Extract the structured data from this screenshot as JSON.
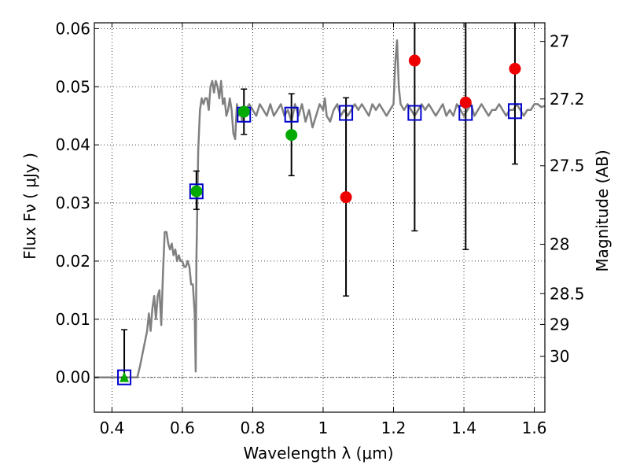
{
  "chart_data": {
    "type": "scatter",
    "xlabel": "Wavelength  λ (μm)",
    "ylabel": "Flux  Fν  ( μJy )",
    "ylabel_right": "Magnitude (AB)",
    "xlim": [
      0.35,
      1.63
    ],
    "ylim": [
      -0.006,
      0.061
    ],
    "grid": true,
    "x_ticks": [
      {
        "value": 0.4,
        "label": "0.4"
      },
      {
        "value": 0.6,
        "label": "0.6"
      },
      {
        "value": 0.8,
        "label": "0.8"
      },
      {
        "value": 1.0,
        "label": "1"
      },
      {
        "value": 1.2,
        "label": "1.2"
      },
      {
        "value": 1.4,
        "label": "1.4"
      },
      {
        "value": 1.6,
        "label": "1.6"
      }
    ],
    "y_ticks": [
      {
        "value": 0.0,
        "label": "0.00"
      },
      {
        "value": 0.01,
        "label": "0.01"
      },
      {
        "value": 0.02,
        "label": "0.02"
      },
      {
        "value": 0.03,
        "label": "0.03"
      },
      {
        "value": 0.04,
        "label": "0.04"
      },
      {
        "value": 0.05,
        "label": "0.05"
      },
      {
        "value": 0.06,
        "label": "0.06"
      }
    ],
    "y2_ticks": [
      {
        "label": "27",
        "flux": 0.0578
      },
      {
        "label": "27.2",
        "flux": 0.0479
      },
      {
        "label": "27.5",
        "flux": 0.0364
      },
      {
        "label": "28",
        "flux": 0.0229
      },
      {
        "label": "28.5",
        "flux": 0.0144
      },
      {
        "label": "29",
        "flux": 0.0091
      },
      {
        "label": "30",
        "flux": 0.0036
      }
    ],
    "zero_line": 0.0,
    "template_spectrum": {
      "color": "#808080",
      "x": [
        0.35,
        0.4,
        0.45,
        0.472,
        0.48,
        0.5,
        0.505,
        0.51,
        0.515,
        0.52,
        0.525,
        0.53,
        0.535,
        0.54,
        0.545,
        0.55,
        0.555,
        0.56,
        0.565,
        0.57,
        0.575,
        0.58,
        0.585,
        0.59,
        0.595,
        0.6,
        0.605,
        0.61,
        0.615,
        0.62,
        0.625,
        0.63,
        0.635,
        0.638,
        0.64,
        0.645,
        0.65,
        0.655,
        0.66,
        0.665,
        0.67,
        0.675,
        0.68,
        0.685,
        0.69,
        0.695,
        0.7,
        0.705,
        0.71,
        0.715,
        0.72,
        0.725,
        0.73,
        0.735,
        0.74,
        0.745,
        0.75,
        0.755,
        0.76,
        0.765,
        0.77,
        0.78,
        0.79,
        0.8,
        0.81,
        0.82,
        0.83,
        0.84,
        0.85,
        0.86,
        0.87,
        0.88,
        0.89,
        0.9,
        0.91,
        0.92,
        0.93,
        0.94,
        0.95,
        0.96,
        0.97,
        0.98,
        0.99,
        1.0,
        1.005,
        1.01,
        1.02,
        1.03,
        1.04,
        1.05,
        1.06,
        1.07,
        1.08,
        1.09,
        1.1,
        1.11,
        1.12,
        1.13,
        1.14,
        1.15,
        1.16,
        1.17,
        1.18,
        1.19,
        1.2,
        1.205,
        1.21,
        1.215,
        1.22,
        1.23,
        1.24,
        1.25,
        1.26,
        1.27,
        1.28,
        1.29,
        1.3,
        1.31,
        1.32,
        1.33,
        1.34,
        1.35,
        1.36,
        1.37,
        1.38,
        1.39,
        1.4,
        1.41,
        1.42,
        1.43,
        1.44,
        1.45,
        1.46,
        1.47,
        1.48,
        1.49,
        1.5,
        1.51,
        1.52,
        1.53,
        1.54,
        1.55,
        1.56,
        1.57,
        1.58,
        1.59,
        1.6,
        1.61,
        1.62,
        1.63
      ],
      "y": [
        0.0,
        0.0,
        0.0,
        0.0,
        0.002,
        0.008,
        0.011,
        0.008,
        0.012,
        0.014,
        0.01,
        0.014,
        0.015,
        0.009,
        0.018,
        0.025,
        0.025,
        0.023,
        0.022,
        0.023,
        0.021,
        0.022,
        0.02,
        0.021,
        0.02,
        0.02,
        0.019,
        0.019,
        0.02,
        0.019,
        0.016,
        0.016,
        0.011,
        0.001,
        0.02,
        0.039,
        0.046,
        0.048,
        0.047,
        0.048,
        0.048,
        0.046,
        0.05,
        0.051,
        0.049,
        0.051,
        0.05,
        0.048,
        0.051,
        0.047,
        0.048,
        0.045,
        0.046,
        0.048,
        0.046,
        0.042,
        0.041,
        0.047,
        0.045,
        0.046,
        0.044,
        0.046,
        0.047,
        0.046,
        0.045,
        0.047,
        0.046,
        0.045,
        0.047,
        0.045,
        0.046,
        0.047,
        0.045,
        0.046,
        0.044,
        0.047,
        0.045,
        0.047,
        0.044,
        0.046,
        0.043,
        0.045,
        0.047,
        0.046,
        0.048,
        0.045,
        0.044,
        0.046,
        0.047,
        0.045,
        0.046,
        0.045,
        0.046,
        0.047,
        0.046,
        0.047,
        0.046,
        0.045,
        0.047,
        0.046,
        0.047,
        0.046,
        0.045,
        0.046,
        0.047,
        0.054,
        0.058,
        0.05,
        0.047,
        0.046,
        0.047,
        0.046,
        0.045,
        0.046,
        0.047,
        0.046,
        0.047,
        0.046,
        0.045,
        0.046,
        0.047,
        0.045,
        0.046,
        0.045,
        0.047,
        0.046,
        0.045,
        0.046,
        0.047,
        0.045,
        0.046,
        0.047,
        0.046,
        0.045,
        0.046,
        0.046,
        0.047,
        0.046,
        0.045,
        0.046,
        0.046,
        0.047,
        0.046,
        0.045,
        0.046,
        0.046,
        0.047,
        0.047,
        0.0465,
        0.0467
      ]
    },
    "model_points": {
      "marker": "open-square",
      "color": "#0000cc",
      "x": [
        0.435,
        0.64,
        0.775,
        0.91,
        1.065,
        1.26,
        1.405,
        1.545
      ],
      "y": [
        0.0,
        0.032,
        0.0452,
        0.0452,
        0.0455,
        0.0455,
        0.0455,
        0.0458
      ]
    },
    "observed_points": [
      {
        "x": 0.435,
        "y": 0.0,
        "marker": "triangle",
        "color": "#00aa00",
        "err_low": 0.0,
        "err_high": 0.0082
      },
      {
        "x": 0.64,
        "y": 0.032,
        "marker": "circle",
        "color": "#00aa00",
        "err_low": 0.0289,
        "err_high": 0.0355
      },
      {
        "x": 0.775,
        "y": 0.0457,
        "marker": "circle",
        "color": "#00aa00",
        "err_low": 0.0418,
        "err_high": 0.0496
      },
      {
        "x": 0.91,
        "y": 0.0417,
        "marker": "circle",
        "color": "#00aa00",
        "err_low": 0.0347,
        "err_high": 0.0488
      },
      {
        "x": 1.065,
        "y": 0.031,
        "marker": "circle",
        "color": "#ee0000",
        "err_low": 0.014,
        "err_high": 0.0481
      },
      {
        "x": 1.26,
        "y": 0.0545,
        "marker": "circle",
        "color": "#ee0000",
        "err_low": 0.0252,
        "err_high": 0.0625
      },
      {
        "x": 1.405,
        "y": 0.0473,
        "marker": "circle",
        "color": "#ee0000",
        "err_low": 0.022,
        "err_high": 0.0625
      },
      {
        "x": 1.545,
        "y": 0.0531,
        "marker": "circle",
        "color": "#ee0000",
        "err_low": 0.0367,
        "err_high": 0.0625
      }
    ]
  }
}
